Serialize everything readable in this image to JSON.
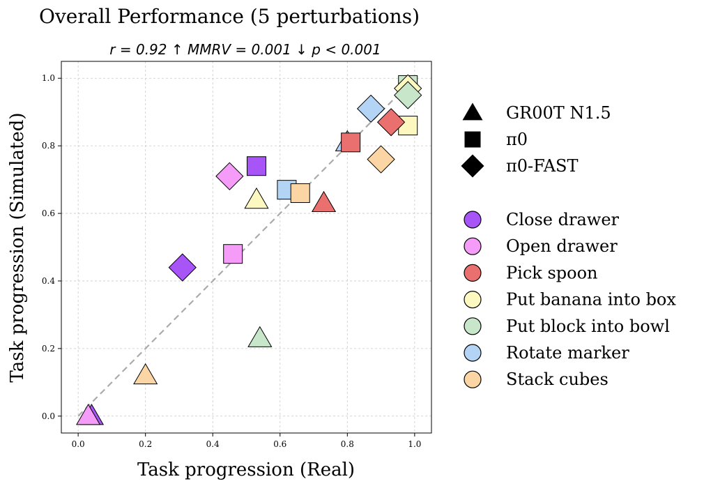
{
  "chart_data": {
    "type": "scatter",
    "title": "Overall Performance (5 perturbations)",
    "subtitle": "r = 0.92 ↑  MMRV = 0.001 ↓  p < 0.001",
    "xlabel": "Task progression (Real)",
    "ylabel": "Task progression (Simulated)",
    "xlim": [
      -0.05,
      1.05
    ],
    "ylim": [
      -0.05,
      1.05
    ],
    "xticks": [
      "0.0",
      "0.2",
      "0.4",
      "0.6",
      "0.8",
      "1.0"
    ],
    "yticks": [
      "0.0",
      "0.2",
      "0.4",
      "0.6",
      "0.8",
      "1.0"
    ],
    "grid": true,
    "reference_line": {
      "from": [
        0,
        0
      ],
      "to": [
        1,
        1
      ],
      "style": "dashed",
      "color": "#aaaaaa"
    },
    "legend_placement": "right",
    "models": [
      {
        "name": "GR00T N1.5",
        "marker": "triangle"
      },
      {
        "name": "π0",
        "marker": "square"
      },
      {
        "name": "π0-FAST",
        "marker": "diamond"
      }
    ],
    "tasks": [
      {
        "name": "Close drawer",
        "color": "#a855f7"
      },
      {
        "name": "Open drawer",
        "color": "#f49cf8"
      },
      {
        "name": "Pick spoon",
        "color": "#ea7070"
      },
      {
        "name": "Put banana into box",
        "color": "#fdf8c0"
      },
      {
        "name": "Put block into bowl",
        "color": "#c8e6c9"
      },
      {
        "name": "Rotate marker",
        "color": "#b3d4f5"
      },
      {
        "name": "Stack cubes",
        "color": "#fcd5a5"
      }
    ],
    "points": [
      {
        "model": "GR00T N1.5",
        "task": "Close drawer",
        "x": 0.04,
        "y": 0.0
      },
      {
        "model": "GR00T N1.5",
        "task": "Open drawer",
        "x": 0.03,
        "y": 0.0
      },
      {
        "model": "GR00T N1.5",
        "task": "Stack cubes",
        "x": 0.2,
        "y": 0.12
      },
      {
        "model": "GR00T N1.5",
        "task": "Put block into bowl",
        "x": 0.54,
        "y": 0.23
      },
      {
        "model": "GR00T N1.5",
        "task": "Put banana into box",
        "x": 0.53,
        "y": 0.64
      },
      {
        "model": "GR00T N1.5",
        "task": "Pick spoon",
        "x": 0.73,
        "y": 0.63
      },
      {
        "model": "GR00T N1.5",
        "task": "Rotate marker",
        "x": 0.8,
        "y": 0.81
      },
      {
        "model": "π0",
        "task": "Close drawer",
        "x": 0.53,
        "y": 0.74
      },
      {
        "model": "π0",
        "task": "Open drawer",
        "x": 0.46,
        "y": 0.48
      },
      {
        "model": "π0",
        "task": "Rotate marker",
        "x": 0.62,
        "y": 0.67
      },
      {
        "model": "π0",
        "task": "Stack cubes",
        "x": 0.66,
        "y": 0.66
      },
      {
        "model": "π0",
        "task": "Pick spoon",
        "x": 0.81,
        "y": 0.81
      },
      {
        "model": "π0",
        "task": "Put block into bowl",
        "x": 0.98,
        "y": 0.98
      },
      {
        "model": "π0",
        "task": "Put banana into box",
        "x": 0.98,
        "y": 0.86
      },
      {
        "model": "π0-FAST",
        "task": "Close drawer",
        "x": 0.31,
        "y": 0.44
      },
      {
        "model": "π0-FAST",
        "task": "Open drawer",
        "x": 0.45,
        "y": 0.71
      },
      {
        "model": "π0-FAST",
        "task": "Rotate marker",
        "x": 0.87,
        "y": 0.91
      },
      {
        "model": "π0-FAST",
        "task": "Pick spoon",
        "x": 0.93,
        "y": 0.87
      },
      {
        "model": "π0-FAST",
        "task": "Stack cubes",
        "x": 0.9,
        "y": 0.76
      },
      {
        "model": "π0-FAST",
        "task": "Put banana into box",
        "x": 0.98,
        "y": 0.97
      },
      {
        "model": "π0-FAST",
        "task": "Put block into bowl",
        "x": 0.98,
        "y": 0.95
      }
    ]
  }
}
